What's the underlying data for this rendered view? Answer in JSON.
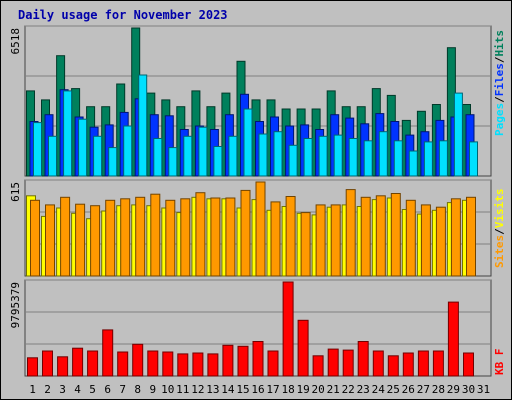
{
  "title": "Daily usage for November 2023",
  "colors": {
    "hits": "#00805c",
    "files": "#0033ff",
    "pages": "#00e0ff",
    "visits": "#ffff00",
    "sites": "#ff9900",
    "kbytes": "#ff0000",
    "title_text": "#0000aa",
    "weekend_tick": "#00805c"
  },
  "chart_data": [
    {
      "type": "bar",
      "categories": [
        "1",
        "2",
        "3",
        "4",
        "5",
        "6",
        "7",
        "8",
        "9",
        "10",
        "11",
        "12",
        "13",
        "14",
        "15",
        "16",
        "17",
        "18",
        "19",
        "20",
        "21",
        "22",
        "23",
        "24",
        "25",
        "26",
        "27",
        "28",
        "29",
        "30",
        "31"
      ],
      "weekend_days": [
        "4",
        "5",
        "11",
        "12",
        "18",
        "19",
        "25",
        "26"
      ],
      "ymax_label": "6518",
      "ylim": [
        0,
        6518
      ],
      "legend": [
        "Pages",
        "Files",
        "Hits"
      ],
      "series": [
        {
          "name": "Hits",
          "values": [
            3750,
            3350,
            5300,
            3850,
            3050,
            3050,
            4050,
            6518,
            3650,
            3350,
            3050,
            3750,
            3050,
            3650,
            5050,
            3350,
            3350,
            2950,
            2950,
            2950,
            3750,
            3050,
            3050,
            3850,
            3550,
            2450,
            2850,
            3150,
            5650,
            3150,
            null
          ]
        },
        {
          "name": "Files",
          "values": [
            2400,
            2700,
            3800,
            2600,
            2150,
            2250,
            2800,
            3400,
            2700,
            2650,
            2050,
            2200,
            2050,
            2700,
            3600,
            2400,
            2600,
            2200,
            2250,
            2050,
            2700,
            2550,
            2300,
            2750,
            2400,
            1800,
            1950,
            2450,
            2600,
            2700,
            null
          ]
        },
        {
          "name": "Pages",
          "values": [
            2350,
            1750,
            3750,
            2500,
            1750,
            1250,
            2200,
            4450,
            1650,
            1250,
            1750,
            2150,
            1300,
            1750,
            2950,
            1850,
            1950,
            1350,
            1650,
            1750,
            1800,
            1650,
            1550,
            1950,
            1550,
            1100,
            1500,
            1550,
            3650,
            1500,
            null
          ]
        }
      ]
    },
    {
      "type": "bar",
      "ymax_label": "615",
      "ylim": [
        0,
        615
      ],
      "legend": [
        "Sites",
        "Visits"
      ],
      "series": [
        {
          "name": "Sites",
          "values": [
            495,
            465,
            515,
            470,
            460,
            495,
            505,
            515,
            535,
            495,
            505,
            545,
            510,
            510,
            560,
            615,
            485,
            520,
            415,
            465,
            465,
            565,
            515,
            525,
            540,
            495,
            465,
            450,
            505,
            515,
            null
          ]
        },
        {
          "name": "Visits",
          "values": [
            525,
            390,
            445,
            410,
            375,
            425,
            460,
            465,
            460,
            445,
            415,
            515,
            505,
            505,
            445,
            500,
            430,
            455,
            410,
            400,
            450,
            465,
            455,
            500,
            510,
            435,
            405,
            430,
            480,
            495,
            null
          ]
        }
      ]
    },
    {
      "type": "bar",
      "ymax_label": "9795379",
      "ylim": [
        0,
        9795379
      ],
      "legend": [
        "KB F"
      ],
      "series": [
        {
          "name": "KB F",
          "values": [
            1900000,
            2600000,
            2000000,
            2900000,
            2600000,
            4800000,
            2500000,
            3300000,
            2600000,
            2500000,
            2300000,
            2400000,
            2300000,
            3200000,
            3100000,
            3600000,
            2600000,
            9795379,
            5800000,
            2100000,
            2800000,
            2700000,
            3600000,
            2600000,
            2100000,
            2400000,
            2600000,
            2600000,
            7700000,
            2400000,
            null
          ]
        }
      ]
    }
  ]
}
